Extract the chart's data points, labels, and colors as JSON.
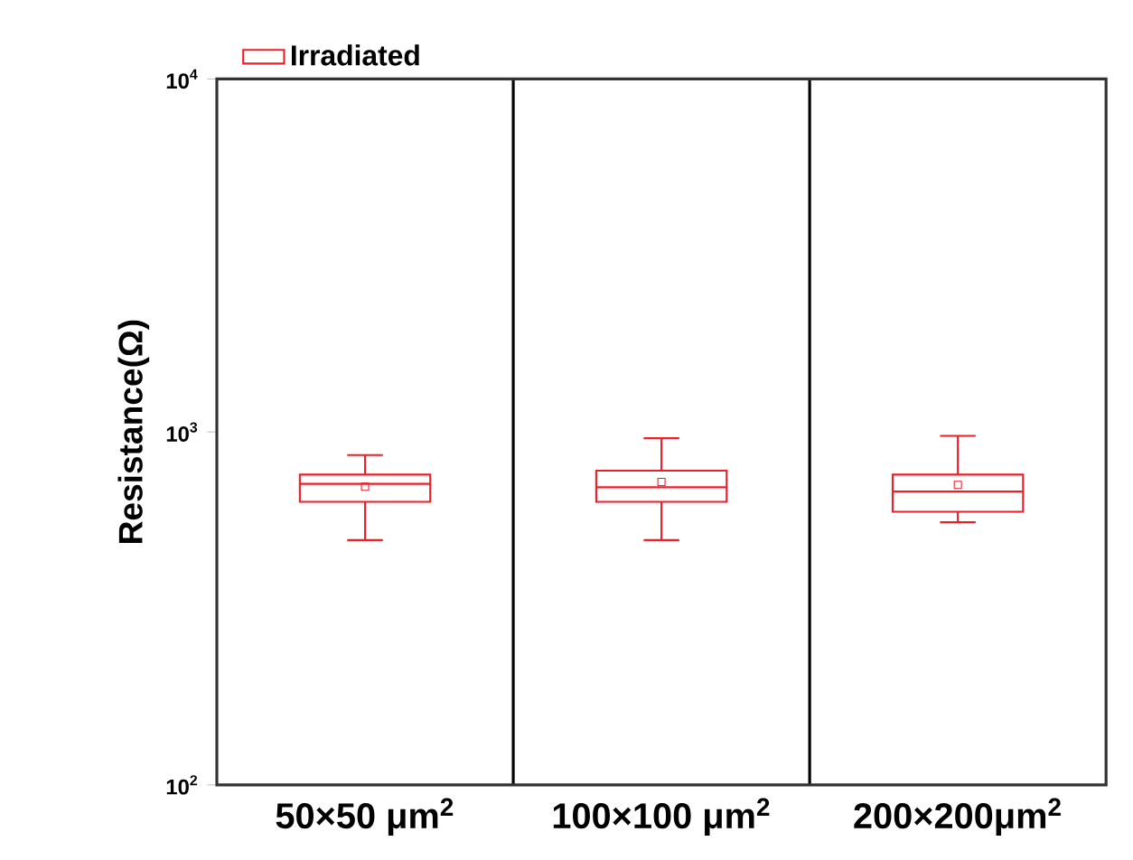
{
  "chart_data": {
    "type": "box",
    "ylabel": "Resistance(Ω)",
    "categories": [
      "50×50 μm$^{2}$",
      "100×100 μm$^{2}$",
      "200×200μm$^{2}$"
    ],
    "series": [
      {
        "name": "Irradiated",
        "color": "#e8212a",
        "boxes": [
          {
            "low": 494,
            "q1": 634,
            "median": 713,
            "q3": 757,
            "high": 860,
            "mean": 700
          },
          {
            "low": 494,
            "q1": 634,
            "median": 697,
            "q3": 777,
            "high": 960,
            "mean": 722
          },
          {
            "low": 555,
            "q1": 594,
            "median": 678,
            "q3": 757,
            "high": 975,
            "mean": 708
          }
        ]
      }
    ],
    "ylim": [
      100,
      10000
    ],
    "yticks": [
      {
        "value": 100,
        "label": "10$^{2}$"
      },
      {
        "value": 1000,
        "label": "10$^{3}$"
      },
      {
        "value": 10000,
        "label": "10$^{4}$"
      }
    ],
    "log": true,
    "legend": "top",
    "grid": false
  }
}
